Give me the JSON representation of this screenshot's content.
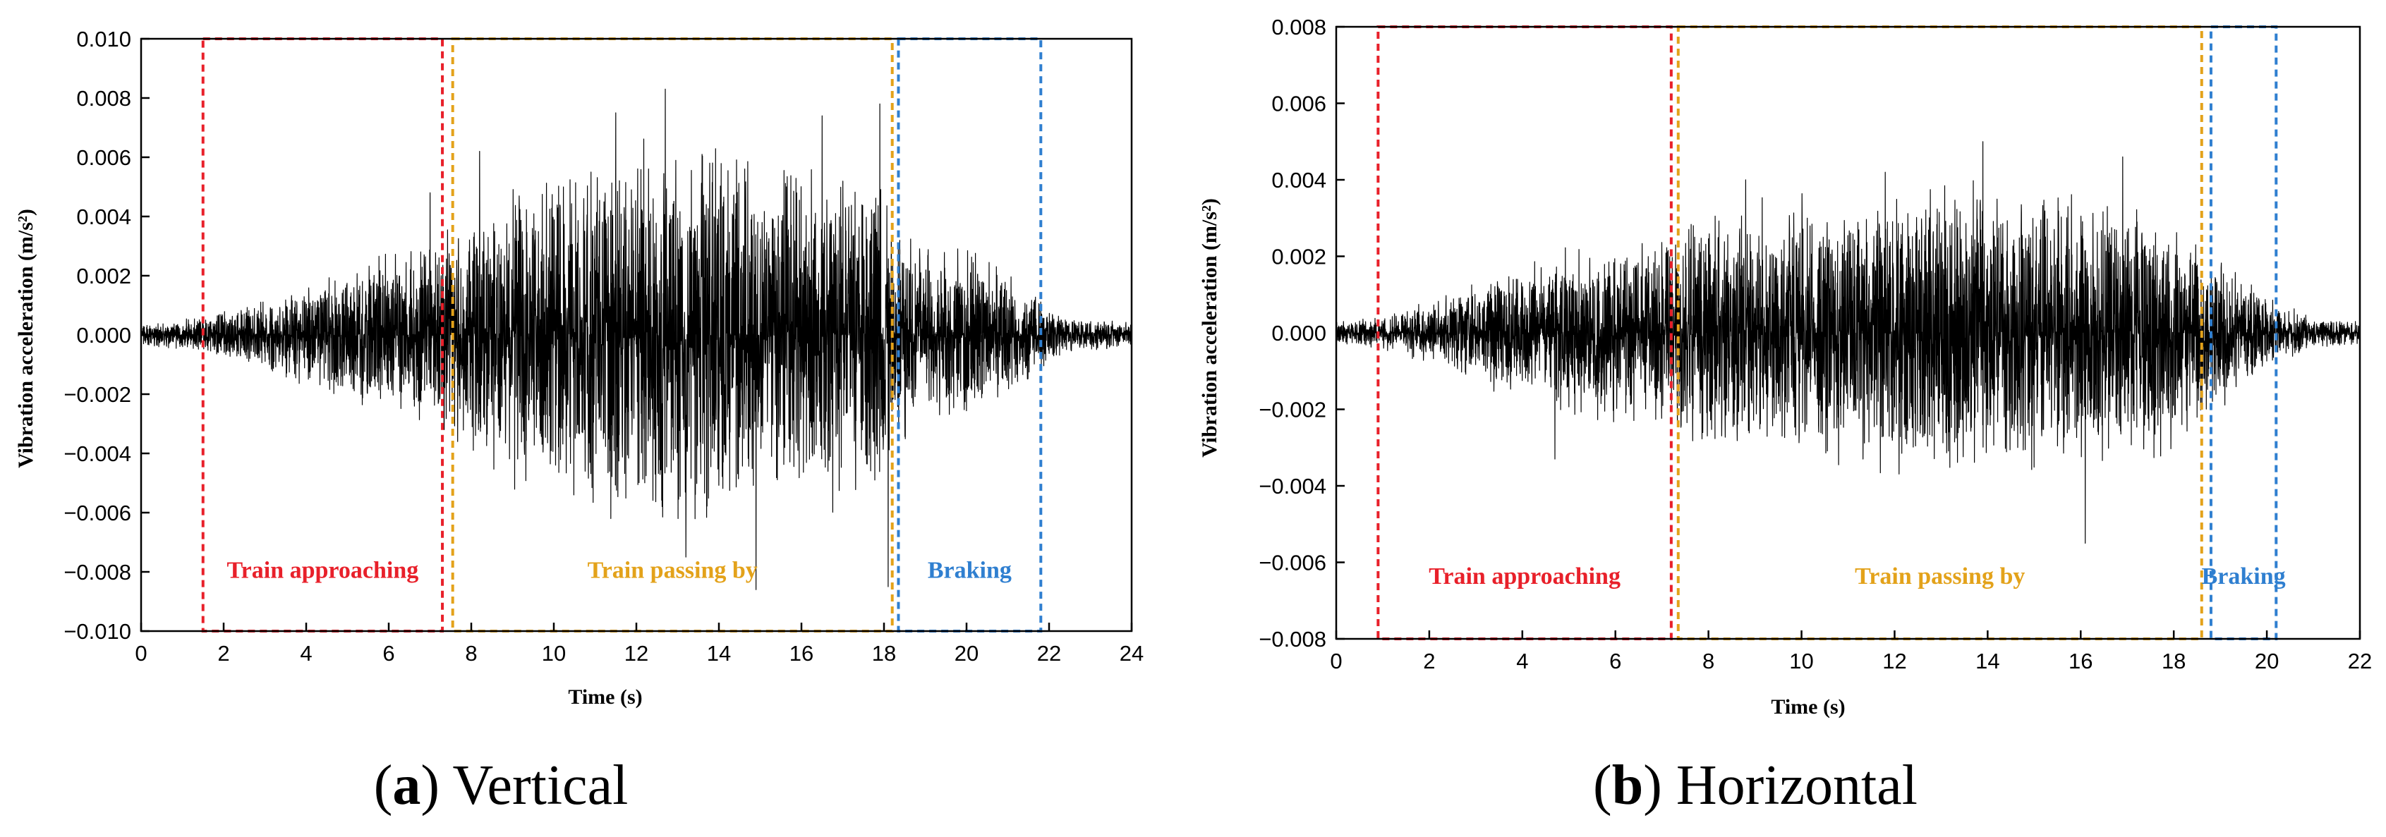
{
  "chart_data": [
    {
      "type": "line",
      "id": "a",
      "caption_letter": "a",
      "caption_text": "Vertical",
      "xlabel": "Time (s)",
      "ylabel": "Vibration acceleration (m/s²)",
      "xlim": [
        0,
        24
      ],
      "ylim": [
        -0.01,
        0.01
      ],
      "x_ticks": [
        0,
        2,
        4,
        6,
        8,
        10,
        12,
        14,
        16,
        18,
        20,
        22,
        24
      ],
      "x_tick_labels": [
        "0",
        "2",
        "4",
        "6",
        "8",
        "10",
        "12",
        "14",
        "16",
        "18",
        "20",
        "22",
        "24"
      ],
      "y_ticks": [
        0.01,
        0.008,
        0.006,
        0.004,
        0.002,
        0,
        -0.002,
        -0.004,
        -0.006,
        -0.008,
        -0.01
      ],
      "y_tick_labels": [
        "0.010",
        "0.008",
        "0.006",
        "0.004",
        "0.002",
        "0.000",
        "−0.002",
        "−0.004",
        "−0.006",
        "−0.008",
        "−0.010"
      ],
      "series_color": "#000000",
      "envelope": [
        [
          0,
          0.0004
        ],
        [
          1.5,
          0.0006
        ],
        [
          3,
          0.0012
        ],
        [
          4.5,
          0.002
        ],
        [
          6,
          0.0028
        ],
        [
          7.3,
          0.0035
        ],
        [
          7.6,
          0.004
        ],
        [
          9,
          0.005
        ],
        [
          11,
          0.0058
        ],
        [
          12.5,
          0.0066
        ],
        [
          14,
          0.0064
        ],
        [
          15,
          0.006
        ],
        [
          16.5,
          0.0058
        ],
        [
          18,
          0.0055
        ],
        [
          18.3,
          0.004
        ],
        [
          19,
          0.0032
        ],
        [
          20.5,
          0.0026
        ],
        [
          21.8,
          0.0012
        ],
        [
          22.5,
          0.0006
        ],
        [
          24,
          0.0004
        ]
      ],
      "peaks": [
        [
          7.0,
          0.0048
        ],
        [
          8.2,
          0.0062
        ],
        [
          11.5,
          0.0075
        ],
        [
          12.7,
          0.0083
        ],
        [
          13.2,
          -0.0075
        ],
        [
          14.9,
          -0.0086
        ],
        [
          16.5,
          0.0074
        ],
        [
          17.9,
          0.0078
        ],
        [
          18.1,
          -0.0085
        ]
      ],
      "regions": [
        {
          "label": "Train approaching",
          "x_start": 1.5,
          "x_end": 7.3,
          "color": "#e8202a"
        },
        {
          "label": "Train passing by",
          "x_start": 7.55,
          "x_end": 18.2,
          "color": "#e3a21a"
        },
        {
          "label": "Braking",
          "x_start": 18.35,
          "x_end": 21.8,
          "color": "#2f7fd0"
        }
      ]
    },
    {
      "type": "line",
      "id": "b",
      "caption_letter": "b",
      "caption_text": "Horizontal",
      "xlabel": "Time (s)",
      "ylabel": "Vibration acceleration (m/s²)",
      "xlim": [
        0,
        22
      ],
      "ylim": [
        -0.008,
        0.008
      ],
      "x_ticks": [
        0,
        2,
        4,
        6,
        8,
        10,
        12,
        14,
        16,
        18,
        20,
        22
      ],
      "x_tick_labels": [
        "0",
        "2",
        "4",
        "6",
        "8",
        "10",
        "12",
        "14",
        "16",
        "18",
        "20",
        "22"
      ],
      "y_ticks": [
        0.008,
        0.006,
        0.004,
        0.002,
        0,
        -0.002,
        -0.004,
        -0.006,
        -0.008
      ],
      "y_tick_labels": [
        "0.008",
        "0.006",
        "0.004",
        "0.002",
        "0.000",
        "−0.002",
        "−0.004",
        "−0.006",
        "−0.008"
      ],
      "series_color": "#000000",
      "envelope": [
        [
          0,
          0.0003
        ],
        [
          0.9,
          0.0004
        ],
        [
          2,
          0.0008
        ],
        [
          3.5,
          0.0016
        ],
        [
          5,
          0.0022
        ],
        [
          6.5,
          0.0024
        ],
        [
          7.2,
          0.0026
        ],
        [
          7.4,
          0.003
        ],
        [
          9,
          0.0034
        ],
        [
          11,
          0.0037
        ],
        [
          13,
          0.004
        ],
        [
          14.5,
          0.0038
        ],
        [
          16,
          0.0036
        ],
        [
          18,
          0.0032
        ],
        [
          18.6,
          0.0024
        ],
        [
          19.3,
          0.0018
        ],
        [
          20.2,
          0.0008
        ],
        [
          21,
          0.0004
        ],
        [
          22,
          0.0003
        ]
      ],
      "peaks": [
        [
          4.7,
          -0.0033
        ],
        [
          8.8,
          0.004
        ],
        [
          11.8,
          0.0042
        ],
        [
          13.9,
          0.005
        ],
        [
          16.1,
          -0.0055
        ],
        [
          16.9,
          0.0046
        ]
      ],
      "regions": [
        {
          "label": "Train approaching",
          "x_start": 0.9,
          "x_end": 7.2,
          "color": "#e8202a"
        },
        {
          "label": "Train passing by",
          "x_start": 7.35,
          "x_end": 18.6,
          "color": "#e3a21a"
        },
        {
          "label": "Braking",
          "x_start": 18.8,
          "x_end": 20.2,
          "color": "#2f7fd0"
        }
      ]
    }
  ]
}
